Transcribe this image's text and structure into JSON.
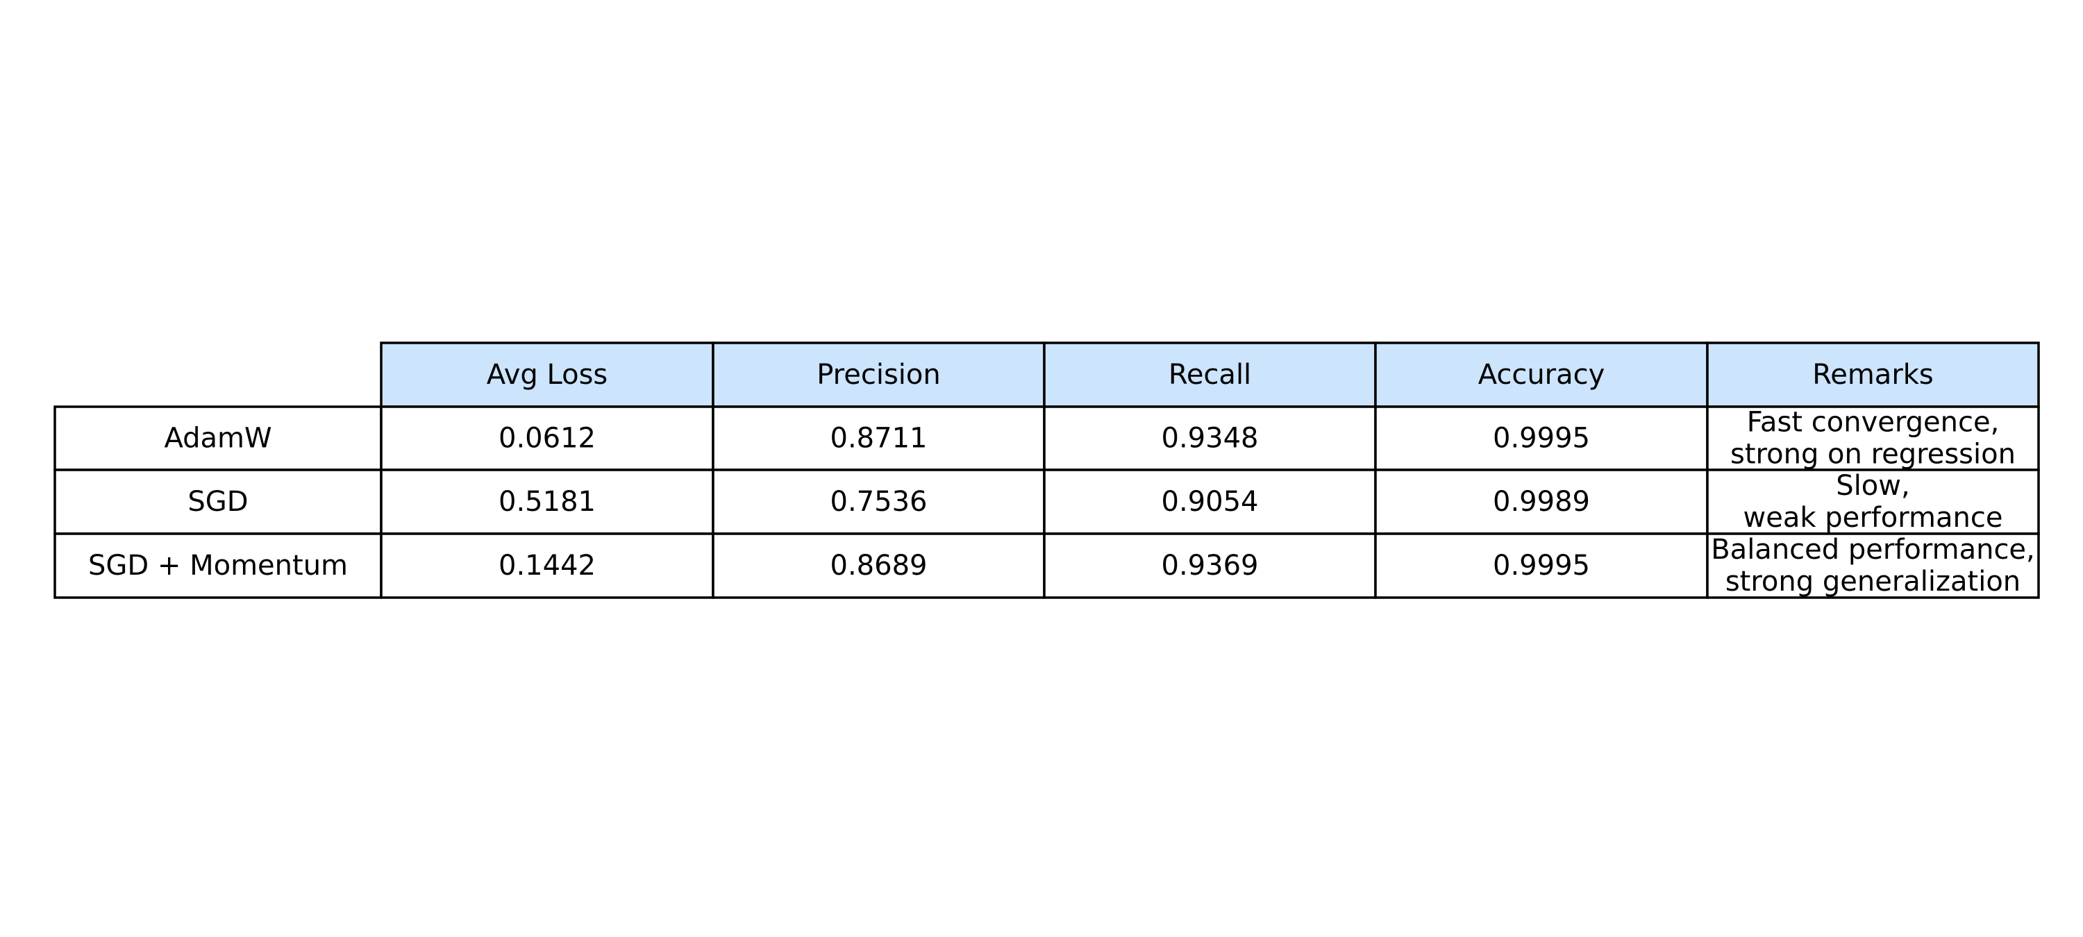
{
  "chart_data": {
    "type": "table",
    "column_headers": [
      "",
      "Avg Loss",
      "Precision",
      "Recall",
      "Accuracy",
      "Remarks"
    ],
    "rows": [
      {
        "label": "AdamW",
        "avg_loss": "0.0612",
        "precision": "0.8711",
        "recall": "0.9348",
        "accuracy": "0.9995",
        "remarks": [
          "Fast convergence,",
          "strong on regression"
        ]
      },
      {
        "label": "SGD",
        "avg_loss": "0.5181",
        "precision": "0.7536",
        "recall": "0.9054",
        "accuracy": "0.9989",
        "remarks": [
          "Slow,",
          "weak performance"
        ]
      },
      {
        "label": "SGD + Momentum",
        "avg_loss": "0.1442",
        "precision": "0.8689",
        "recall": "0.9369",
        "accuracy": "0.9995",
        "remarks": [
          "Balanced performance,",
          "strong generalization"
        ]
      }
    ],
    "header_fill": "#cce4fc",
    "cell_fill": "#ffffff",
    "border_color": "#000000",
    "text_color": "#000000"
  }
}
